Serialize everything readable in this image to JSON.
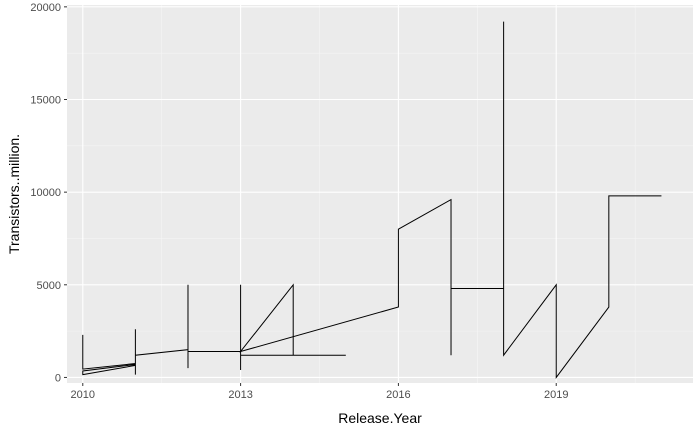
{
  "chart_data": {
    "type": "line",
    "title": "",
    "xlabel": "Release.Year",
    "ylabel": "Transistors..million.",
    "xlim": [
      2009.7,
      2021.6
    ],
    "ylim": [
      -300,
      20100
    ],
    "x_ticks": [
      2010,
      2013,
      2016,
      2019
    ],
    "y_ticks": [
      0,
      5000,
      10000,
      15000,
      20000
    ],
    "x_tick_labels": [
      "2010",
      "2013",
      "2016",
      "2019"
    ],
    "y_tick_labels": [
      "0",
      "5000",
      "10000",
      "15000",
      "20000"
    ],
    "grid": true,
    "legend": "none",
    "colors": {
      "panel_background": "#ebebeb",
      "grid_major": "#ffffff",
      "grid_minor": "#f5f5f5",
      "line": "#000000",
      "tick_label": "#4d4d4d",
      "tick_mark": "#333333",
      "axis_title": "#000000"
    },
    "series": [
      {
        "points": [
          [
            2010,
            2300
          ],
          [
            2010,
            450
          ],
          [
            2011,
            750
          ],
          [
            2011,
            2600
          ],
          [
            2011,
            150
          ],
          [
            2011,
            650
          ],
          [
            2010,
            150
          ],
          [
            2010,
            350
          ],
          [
            2011,
            700
          ],
          [
            2011,
            1200
          ],
          [
            2012,
            1500
          ],
          [
            2012,
            5000
          ],
          [
            2012,
            500
          ],
          [
            2012,
            1400
          ],
          [
            2013,
            1400
          ],
          [
            2013,
            5000
          ],
          [
            2013,
            400
          ],
          [
            2013,
            1200
          ],
          [
            2015,
            1200
          ],
          [
            2014,
            1200
          ],
          [
            2014,
            5000
          ],
          [
            2013,
            1400
          ],
          [
            2016,
            3800
          ],
          [
            2016,
            8000
          ],
          [
            2017,
            9600
          ],
          [
            2017,
            1200
          ],
          [
            2017,
            4800
          ],
          [
            2018,
            4800
          ],
          [
            2018,
            19200
          ],
          [
            2018,
            1200
          ],
          [
            2019,
            5000
          ],
          [
            2019,
            0
          ],
          [
            2020,
            3800
          ],
          [
            2020,
            9800
          ],
          [
            2021,
            9800
          ]
        ]
      }
    ]
  }
}
